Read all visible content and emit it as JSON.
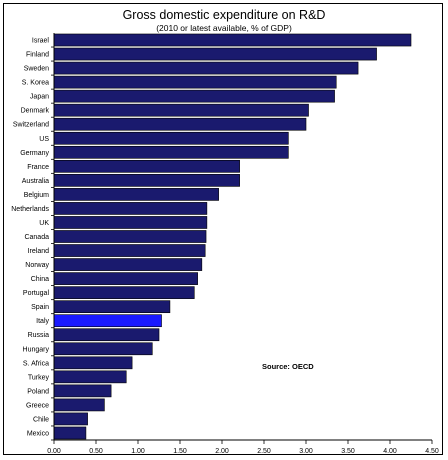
{
  "chart_data": {
    "type": "bar",
    "orientation": "horizontal",
    "title": "Gross domestic expenditure on R&D",
    "subtitle": "(2010 or latest available, % of GDP)",
    "annotation": "Source: OECD",
    "xlim": [
      0,
      4.5
    ],
    "xticks": [
      "0.00",
      "0.50",
      "1.00",
      "1.50",
      "2.00",
      "2.50",
      "3.00",
      "3.50",
      "4.00",
      "4.50"
    ],
    "grid": false,
    "categories": [
      "Israel",
      "Finland",
      "Sweden",
      "S. Korea",
      "Japan",
      "Denmark",
      "Switzerland",
      "US",
      "Germany",
      "France",
      "Australia",
      "Belgium",
      "Netherlands",
      "UK",
      "Canada",
      "Ireland",
      "Norway",
      "China",
      "Portugal",
      "Spain",
      "Italy",
      "Russia",
      "Hungary",
      "S. Africa",
      "Turkey",
      "Poland",
      "Greece",
      "Chile",
      "Mexico"
    ],
    "values": [
      4.25,
      3.84,
      3.62,
      3.36,
      3.34,
      3.03,
      3.0,
      2.79,
      2.79,
      2.21,
      2.21,
      1.96,
      1.82,
      1.82,
      1.81,
      1.8,
      1.76,
      1.71,
      1.67,
      1.38,
      1.28,
      1.25,
      1.17,
      0.93,
      0.86,
      0.68,
      0.6,
      0.4,
      0.38
    ],
    "colors": {
      "bar": "#1a1a6e",
      "highlight": "#1a1aff",
      "highlight_category": "Italy"
    }
  }
}
